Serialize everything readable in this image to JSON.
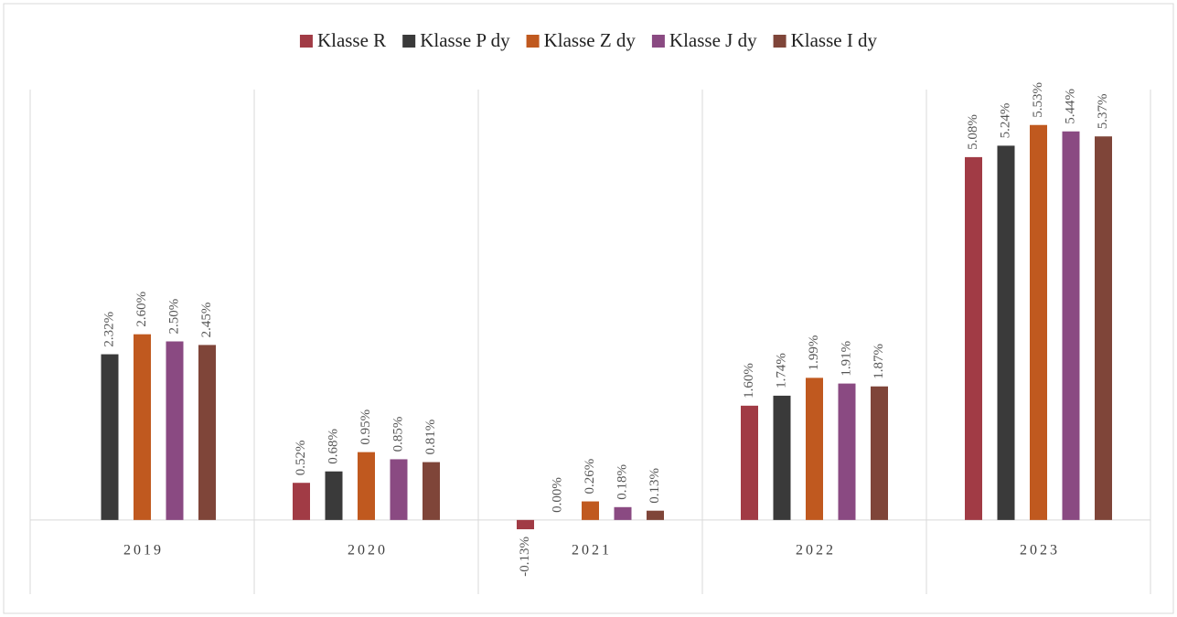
{
  "chart_data": {
    "type": "bar",
    "categories": [
      "2019",
      "2020",
      "2021",
      "2022",
      "2023"
    ],
    "ylim": [
      -1,
      6
    ],
    "series": [
      {
        "name": "Klasse R",
        "color": "#a13b45",
        "values": [
          null,
          0.52,
          -0.13,
          1.6,
          5.08
        ],
        "value_labels": [
          null,
          "0.52%",
          "-0.13%",
          "1.60%",
          "5.08%"
        ]
      },
      {
        "name": "Klasse P dy",
        "color": "#3a3a3a",
        "values": [
          2.32,
          0.68,
          0.0,
          1.74,
          5.24
        ],
        "value_labels": [
          "2.32%",
          "0.68%",
          "0.00%",
          "1.74%",
          "5.24%"
        ]
      },
      {
        "name": "Klasse Z dy",
        "color": "#c0591f",
        "values": [
          2.6,
          0.95,
          0.26,
          1.99,
          5.53
        ],
        "value_labels": [
          "2.60%",
          "0.95%",
          "0.26%",
          "1.99%",
          "5.53%"
        ]
      },
      {
        "name": "Klasse J dy",
        "color": "#8a4a82",
        "values": [
          2.5,
          0.85,
          0.18,
          1.91,
          5.44
        ],
        "value_labels": [
          "2.50%",
          "0.85%",
          "0.18%",
          "1.91%",
          "5.44%"
        ]
      },
      {
        "name": "Klasse I dy",
        "color": "#7f4539",
        "values": [
          2.45,
          0.81,
          0.13,
          1.87,
          5.37
        ],
        "value_labels": [
          "2.45%",
          "0.81%",
          "0.13%",
          "1.87%",
          "5.37%"
        ]
      }
    ]
  }
}
